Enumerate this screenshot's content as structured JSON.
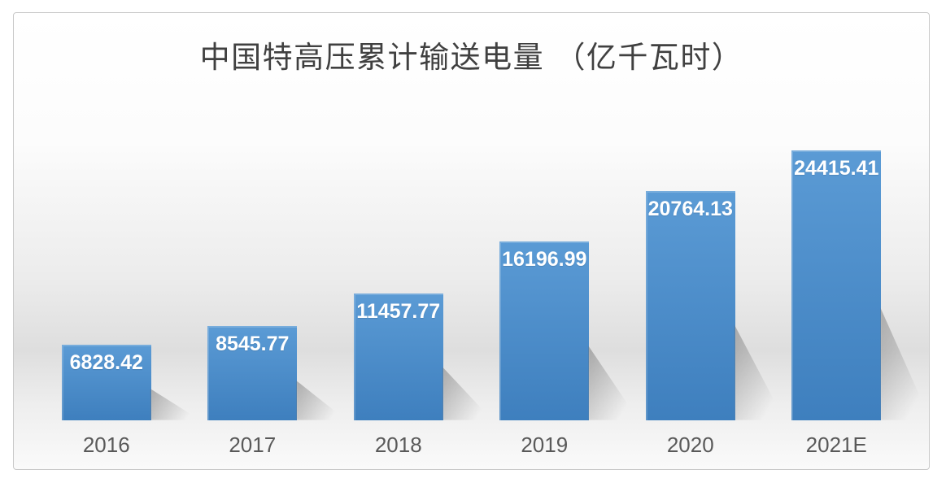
{
  "figure": {
    "background": "#ffffff",
    "border_color": "#c9c9c9"
  },
  "chart_data": {
    "type": "bar",
    "title": "中国特高压累计输送电量 （亿千瓦时）",
    "categories": [
      "2016",
      "2017",
      "2018",
      "2019",
      "2020",
      "2021E"
    ],
    "values": [
      6828.42,
      8545.77,
      11457.77,
      16196.99,
      20764.13,
      24415.41
    ],
    "value_labels": [
      "6828.42",
      "8545.77",
      "11457.77",
      "16196.99",
      "20764.13",
      "24415.41"
    ],
    "xlabel": "",
    "ylabel": "",
    "ylim": [
      0,
      30000
    ],
    "grid": false,
    "legend": "none",
    "bar_color_top": "#5b9bd5",
    "bar_color_bottom": "#3e7fbe",
    "value_label_color": "#ffffff",
    "axis_label_color": "#595959",
    "title_color": "#404040",
    "shadow_style": "perspective-lower-right"
  }
}
